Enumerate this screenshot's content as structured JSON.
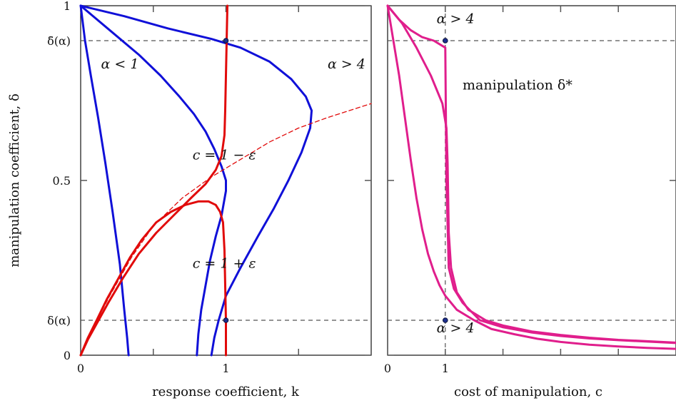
{
  "chart_data": [
    {
      "type": "line",
      "title": "",
      "xlabel": "response coefficient, k",
      "ylabel": "manipulation coefficient, δ",
      "xlim": [
        0,
        2
      ],
      "ylim": [
        0,
        1
      ],
      "xticks": [
        {
          "value": 0,
          "label": "0"
        },
        {
          "value": 1,
          "label": "1"
        }
      ],
      "yticks": [
        {
          "value": 0,
          "label": "0"
        },
        {
          "value": 0.1,
          "label": "δ(α)"
        },
        {
          "value": 0.5,
          "label": "0.5"
        },
        {
          "value": 0.9,
          "label": "δ̄(α)"
        },
        {
          "value": 1,
          "label": "1"
        }
      ],
      "dashed_guides_y": [
        0.1,
        0.9
      ],
      "annotations": [
        {
          "text": "α < 1",
          "x": 0.14,
          "y": 0.82
        },
        {
          "text": "α > 4",
          "x": 1.7,
          "y": 0.82
        },
        {
          "text": "c = 1 − ε",
          "x": 0.77,
          "y": 0.56
        },
        {
          "text": "c = 1 + ε",
          "x": 0.77,
          "y": 0.25
        }
      ],
      "series": [
        {
          "name": "",
          "color": "#1010d8",
          "style": "solid",
          "points": [
            [
              0,
              1
            ],
            [
              0.03,
              0.9
            ],
            [
              0.07,
              0.8
            ],
            [
              0.12,
              0.68
            ],
            [
              0.17,
              0.55
            ],
            [
              0.22,
              0.41
            ],
            [
              0.27,
              0.26
            ],
            [
              0.3,
              0.13
            ],
            [
              0.32,
              0.05
            ],
            [
              0.33,
              0
            ]
          ]
        },
        {
          "name": "",
          "color": "#1010d8",
          "style": "solid",
          "points": [
            [
              0,
              1
            ],
            [
              0.2,
              0.93
            ],
            [
              0.4,
              0.86
            ],
            [
              0.55,
              0.8
            ],
            [
              0.68,
              0.74
            ],
            [
              0.78,
              0.69
            ],
            [
              0.86,
              0.64
            ],
            [
              0.92,
              0.59
            ],
            [
              0.97,
              0.54
            ],
            [
              1.0,
              0.5
            ],
            [
              1.0,
              0.47
            ],
            [
              0.97,
              0.4
            ],
            [
              0.93,
              0.34
            ],
            [
              0.89,
              0.27
            ],
            [
              0.86,
              0.2
            ],
            [
              0.83,
              0.13
            ],
            [
              0.81,
              0.06
            ],
            [
              0.8,
              0
            ]
          ]
        },
        {
          "name": "",
          "color": "#1010d8",
          "style": "solid",
          "points": [
            [
              0,
              1
            ],
            [
              0.3,
              0.97
            ],
            [
              0.6,
              0.935
            ],
            [
              0.9,
              0.905
            ],
            [
              1.1,
              0.88
            ],
            [
              1.3,
              0.84
            ],
            [
              1.45,
              0.79
            ],
            [
              1.55,
              0.74
            ],
            [
              1.59,
              0.7
            ],
            [
              1.58,
              0.65
            ],
            [
              1.52,
              0.58
            ],
            [
              1.43,
              0.5
            ],
            [
              1.33,
              0.42
            ],
            [
              1.22,
              0.34
            ],
            [
              1.1,
              0.25
            ],
            [
              1.0,
              0.17
            ],
            [
              0.95,
              0.1
            ],
            [
              0.92,
              0.05
            ],
            [
              0.9,
              0
            ]
          ]
        },
        {
          "name": "",
          "color": "#e10a0a",
          "style": "solid",
          "points": [
            [
              1.01,
              1
            ],
            [
              1.005,
              0.9
            ],
            [
              1.0,
              0.8
            ],
            [
              0.995,
              0.7
            ],
            [
              0.99,
              0.63
            ],
            [
              0.97,
              0.57
            ],
            [
              0.93,
              0.53
            ],
            [
              0.86,
              0.49
            ],
            [
              0.76,
              0.45
            ],
            [
              0.64,
              0.4
            ],
            [
              0.52,
              0.35
            ],
            [
              0.4,
              0.29
            ],
            [
              0.29,
              0.22
            ],
            [
              0.19,
              0.15
            ],
            [
              0.11,
              0.09
            ],
            [
              0.05,
              0.045
            ],
            [
              0,
              0
            ]
          ]
        },
        {
          "name": "",
          "color": "#e10a0a",
          "style": "solid",
          "points": [
            [
              0,
              0
            ],
            [
              0.05,
              0.05
            ],
            [
              0.11,
              0.1
            ],
            [
              0.18,
              0.16
            ],
            [
              0.26,
              0.22
            ],
            [
              0.34,
              0.28
            ],
            [
              0.42,
              0.33
            ],
            [
              0.52,
              0.38
            ],
            [
              0.62,
              0.41
            ],
            [
              0.72,
              0.43
            ],
            [
              0.81,
              0.44
            ],
            [
              0.88,
              0.44
            ],
            [
              0.93,
              0.43
            ],
            [
              0.96,
              0.41
            ],
            [
              0.98,
              0.38
            ],
            [
              0.99,
              0.3
            ],
            [
              0.995,
              0.2
            ],
            [
              1.0,
              0.1
            ],
            [
              1.0,
              0
            ]
          ]
        },
        {
          "name": "",
          "color": "#e10a0a",
          "style": "dashed",
          "points": [
            [
              0,
              0
            ],
            [
              0.1,
              0.09
            ],
            [
              0.2,
              0.17
            ],
            [
              0.35,
              0.28
            ],
            [
              0.5,
              0.37
            ],
            [
              0.7,
              0.45
            ],
            [
              0.9,
              0.51
            ],
            [
              1.1,
              0.56
            ],
            [
              1.3,
              0.61
            ],
            [
              1.5,
              0.65
            ],
            [
              1.7,
              0.68
            ],
            [
              1.85,
              0.7
            ],
            [
              2.0,
              0.72
            ]
          ]
        }
      ],
      "markers": [
        [
          1,
          0.9
        ],
        [
          1,
          0.1
        ]
      ]
    },
    {
      "type": "line",
      "title": "",
      "xlabel": "cost of manipulation, c",
      "ylabel": "",
      "xlim": [
        0,
        5
      ],
      "ylim": [
        0,
        1
      ],
      "xticks": [
        {
          "value": 0,
          "label": "0"
        },
        {
          "value": 1,
          "label": "1"
        }
      ],
      "dashed_guides_y": [
        0.1,
        0.9
      ],
      "dashed_guides_x": [
        1
      ],
      "annotations": [
        {
          "text": "α > 4",
          "x": 0.85,
          "y": 0.95
        },
        {
          "text": "manipulation δ*",
          "x": 1.3,
          "y": 0.76
        },
        {
          "text": "α > 4",
          "x": 0.85,
          "y": 0.065
        }
      ],
      "series": [
        {
          "name": "",
          "color": "#e01e8c",
          "style": "solid",
          "points": [
            [
              0,
              1
            ],
            [
              0.2,
              0.96
            ],
            [
              0.4,
              0.93
            ],
            [
              0.6,
              0.91
            ],
            [
              0.8,
              0.9
            ],
            [
              1.0,
              0.88
            ],
            [
              1.02,
              0.5
            ],
            [
              1.06,
              0.25
            ],
            [
              1.15,
              0.19
            ],
            [
              1.3,
              0.15
            ],
            [
              1.6,
              0.1
            ],
            [
              2.0,
              0.08
            ],
            [
              2.5,
              0.065
            ],
            [
              3.0,
              0.055
            ],
            [
              3.5,
              0.048
            ],
            [
              4.0,
              0.043
            ],
            [
              4.5,
              0.039
            ],
            [
              5.0,
              0.035
            ]
          ]
        },
        {
          "name": "",
          "color": "#e01e8c",
          "style": "solid",
          "points": [
            [
              0,
              1
            ],
            [
              0.25,
              0.95
            ],
            [
              0.5,
              0.88
            ],
            [
              0.75,
              0.8
            ],
            [
              0.95,
              0.72
            ],
            [
              1.02,
              0.65
            ],
            [
              1.04,
              0.55
            ],
            [
              1.05,
              0.45
            ],
            [
              1.06,
              0.35
            ],
            [
              1.1,
              0.25
            ],
            [
              1.2,
              0.18
            ],
            [
              1.4,
              0.13
            ],
            [
              1.7,
              0.1
            ],
            [
              2.0,
              0.085
            ],
            [
              2.5,
              0.068
            ],
            [
              3.0,
              0.058
            ],
            [
              3.5,
              0.05
            ],
            [
              4.0,
              0.044
            ],
            [
              4.5,
              0.04
            ],
            [
              5.0,
              0.036
            ]
          ]
        },
        {
          "name": "",
          "color": "#e01e8c",
          "style": "solid",
          "points": [
            [
              0,
              1
            ],
            [
              0.1,
              0.9
            ],
            [
              0.2,
              0.8
            ],
            [
              0.3,
              0.68
            ],
            [
              0.4,
              0.56
            ],
            [
              0.5,
              0.45
            ],
            [
              0.6,
              0.36
            ],
            [
              0.7,
              0.29
            ],
            [
              0.8,
              0.24
            ],
            [
              0.9,
              0.2
            ],
            [
              1.0,
              0.17
            ],
            [
              1.2,
              0.13
            ],
            [
              1.5,
              0.1
            ],
            [
              1.8,
              0.075
            ],
            [
              2.2,
              0.06
            ],
            [
              2.6,
              0.047
            ],
            [
              3.0,
              0.038
            ],
            [
              3.5,
              0.03
            ],
            [
              4.0,
              0.025
            ],
            [
              4.5,
              0.021
            ],
            [
              5.0,
              0.018
            ]
          ]
        }
      ],
      "markers": [
        [
          1,
          0.9
        ],
        [
          1,
          0.1
        ]
      ]
    }
  ]
}
